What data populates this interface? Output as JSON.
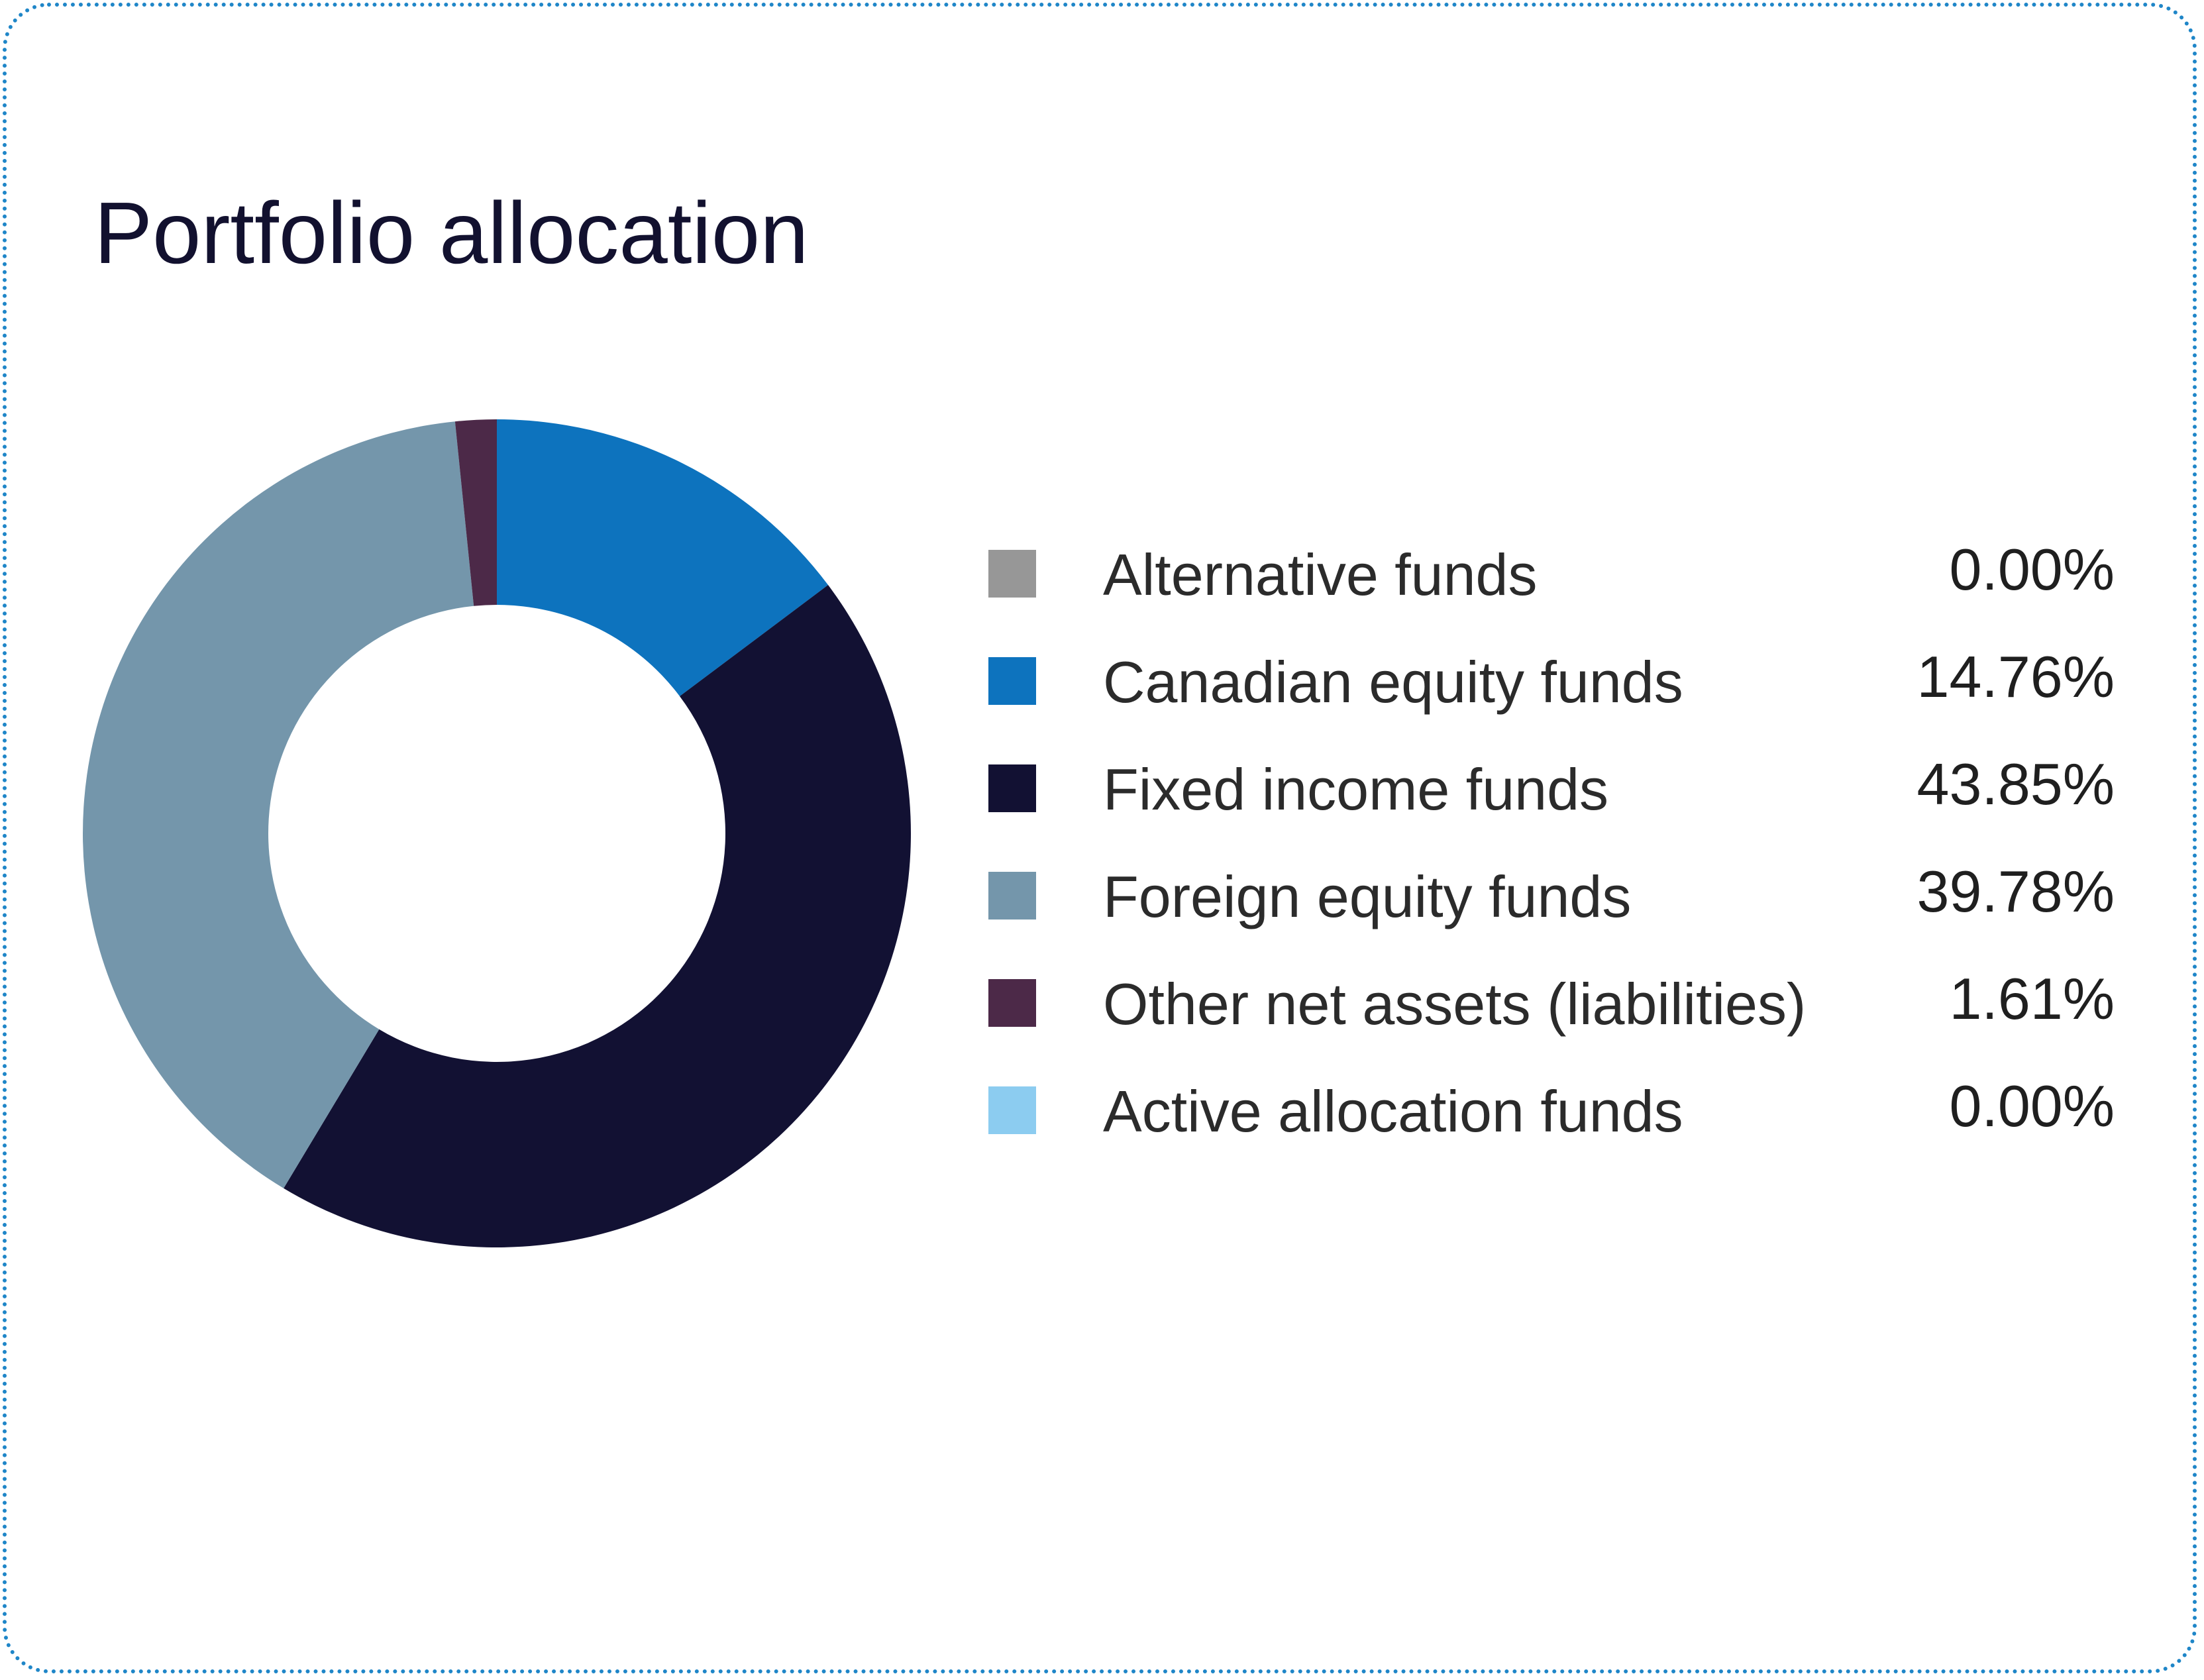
{
  "chart_data": {
    "type": "pie",
    "title": "Portfolio allocation",
    "hole": true,
    "legend_position": "right",
    "slices": [
      {
        "label": "Alternative funds",
        "value": 0.0,
        "value_text": "0.00%",
        "color": "#979797"
      },
      {
        "label": "Canadian equity funds",
        "value": 14.76,
        "value_text": "14.76%",
        "color": "#0d73be"
      },
      {
        "label": "Fixed income funds",
        "value": 43.85,
        "value_text": "43.85%",
        "color": "#121133"
      },
      {
        "label": "Foreign equity funds",
        "value": 39.78,
        "value_text": "39.78%",
        "color": "#7496ab"
      },
      {
        "label": "Other net assets (liabilities)",
        "value": 1.61,
        "value_text": "1.61%",
        "color": "#4c2948"
      },
      {
        "label": "Active allocation funds",
        "value": 0.0,
        "value_text": "0.00%",
        "color": "#8cccf0"
      }
    ]
  }
}
